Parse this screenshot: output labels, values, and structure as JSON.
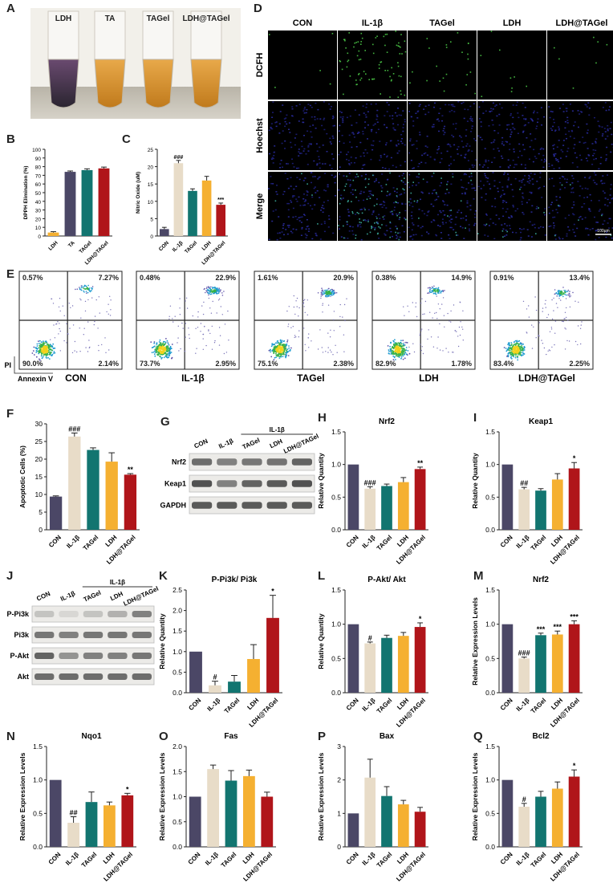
{
  "colors": {
    "CON": "#4b4766",
    "IL": "#e8dcc8",
    "TAGel": "#127570",
    "LDH": "#f5b031",
    "LDHTA": "#b0151a"
  },
  "panel_letters": [
    "A",
    "B",
    "C",
    "D",
    "E",
    "F",
    "G",
    "H",
    "I",
    "J",
    "K",
    "L",
    "M",
    "N",
    "O",
    "P",
    "Q"
  ],
  "panel_a": {
    "tubes": [
      "LDH",
      "TA",
      "TAGel",
      "LDH@TAGel"
    ]
  },
  "panel_d": {
    "cols": [
      "CON",
      "IL-1β",
      "TAGel",
      "LDH",
      "LDH@TAGel"
    ],
    "rows": [
      "DCFH",
      "Hoechst",
      "Merge"
    ],
    "scalebar": "100μm"
  },
  "panel_e": {
    "ylabel": "PI",
    "xlabel": "Annexin V",
    "plots": [
      {
        "name": "CON",
        "ul": "0.57%",
        "ur": "7.27%",
        "ll": "90.0%",
        "lr": "2.14%"
      },
      {
        "name": "IL-1β",
        "ul": "0.48%",
        "ur": "22.9%",
        "ll": "73.7%",
        "lr": "2.95%"
      },
      {
        "name": "TAGel",
        "ul": "1.61%",
        "ur": "20.9%",
        "ll": "75.1%",
        "lr": "2.38%"
      },
      {
        "name": "LDH",
        "ul": "0.38%",
        "ur": "14.9%",
        "ll": "82.9%",
        "lr": "1.78%"
      },
      {
        "name": "LDH@TAGel",
        "ul": "0.91%",
        "ur": "13.4%",
        "ll": "83.4%",
        "lr": "2.25%"
      }
    ]
  },
  "blot_g": {
    "group": "IL-1β",
    "lanes": [
      "CON",
      "IL-1β",
      "TAGel",
      "LDH",
      "LDH@TAGel"
    ],
    "rows": [
      "Nrf2",
      "Keap1",
      "GAPDH"
    ]
  },
  "blot_j": {
    "group": "IL-1β",
    "lanes": [
      "CON",
      "IL-1β",
      "TAGel",
      "LDH",
      "LDH@TAGel"
    ],
    "rows": [
      "P-Pi3k",
      "Pi3k",
      "P-Akt",
      "Akt"
    ]
  },
  "chart_data": [
    {
      "id": "B",
      "type": "bar",
      "title": "",
      "ylabel": "DPPH Elimination (%)",
      "ylim": [
        0,
        100
      ],
      "yticks": [
        0,
        10,
        20,
        30,
        40,
        50,
        60,
        70,
        80,
        90,
        100
      ],
      "categories": [
        "LDH",
        "TA",
        "TAGel",
        "LDH@TAGel"
      ],
      "colorkeys": [
        "LDH",
        "CON",
        "TAGel",
        "LDHTA"
      ],
      "values": [
        4,
        74,
        76,
        78
      ],
      "errors": [
        1,
        1,
        1.5,
        1.5
      ],
      "annotations": [
        "",
        "",
        "",
        ""
      ]
    },
    {
      "id": "C",
      "type": "bar",
      "title": "",
      "ylabel": "Nitric Oxide (uM)",
      "ylim": [
        0,
        25
      ],
      "yticks": [
        0,
        5,
        10,
        15,
        20,
        25
      ],
      "categories": [
        "CON",
        "IL-1β",
        "TAGel",
        "LDH",
        "LDH@TAGel"
      ],
      "colorkeys": [
        "CON",
        "IL",
        "TAGel",
        "LDH",
        "LDHTA"
      ],
      "values": [
        2,
        21,
        13,
        16,
        9
      ],
      "errors": [
        0.5,
        0.8,
        0.6,
        1.2,
        0.5
      ],
      "annotations": [
        "",
        "###",
        "",
        "",
        "***"
      ]
    },
    {
      "id": "F",
      "type": "bar",
      "title": "",
      "ylabel": "Apoptotic Cells (%)",
      "ylim": [
        0,
        30
      ],
      "yticks": [
        0,
        5,
        10,
        15,
        20,
        25,
        30
      ],
      "categories": [
        "CON",
        "IL-1β",
        "TAGel",
        "LDH",
        "LDH@TAGel"
      ],
      "colorkeys": [
        "CON",
        "IL",
        "TAGel",
        "LDH",
        "LDHTA"
      ],
      "values": [
        9.4,
        26.4,
        22.6,
        19.3,
        15.6
      ],
      "errors": [
        0.2,
        1.0,
        0.6,
        2.5,
        0.3
      ],
      "annotations": [
        "",
        "###",
        "",
        "",
        "**"
      ]
    },
    {
      "id": "H",
      "type": "bar",
      "title": "Nrf2",
      "ylabel": "Relative Quantity",
      "ylim": [
        0,
        1.5
      ],
      "yticks": [
        0,
        0.5,
        1.0,
        1.5
      ],
      "categories": [
        "CON",
        "IL-1β",
        "TAGel",
        "LDH",
        "LDH@TAGel"
      ],
      "colorkeys": [
        "CON",
        "IL",
        "TAGel",
        "LDH",
        "LDHTA"
      ],
      "values": [
        1.0,
        0.63,
        0.67,
        0.73,
        0.93
      ],
      "errors": [
        0,
        0.03,
        0.03,
        0.07,
        0.03
      ],
      "annotations": [
        "",
        "###",
        "",
        "",
        "**"
      ]
    },
    {
      "id": "I",
      "type": "bar",
      "title": "Keap1",
      "ylabel": "Relative Quantity",
      "ylim": [
        0,
        1.5
      ],
      "yticks": [
        0,
        0.5,
        1.0,
        1.5
      ],
      "categories": [
        "CON",
        "IL-1β",
        "TAGel",
        "LDH",
        "LDH@TAGel"
      ],
      "colorkeys": [
        "CON",
        "IL",
        "TAGel",
        "LDH",
        "LDHTA"
      ],
      "values": [
        1.0,
        0.62,
        0.6,
        0.77,
        0.94
      ],
      "errors": [
        0,
        0.03,
        0.03,
        0.09,
        0.09
      ],
      "annotations": [
        "",
        "##",
        "",
        "",
        "*"
      ]
    },
    {
      "id": "K",
      "type": "bar",
      "title": "P-Pi3k/ Pi3k",
      "ylabel": "Relative Quantity",
      "ylim": [
        0,
        2.5
      ],
      "yticks": [
        0,
        0.5,
        1.0,
        1.5,
        2.0,
        2.5
      ],
      "categories": [
        "CON",
        "IL-1β",
        "TAGel",
        "LDH",
        "LDH@TAGel"
      ],
      "colorkeys": [
        "CON",
        "IL",
        "TAGel",
        "LDH",
        "LDHTA"
      ],
      "values": [
        1.0,
        0.18,
        0.27,
        0.82,
        1.82
      ],
      "errors": [
        0,
        0.1,
        0.15,
        0.35,
        0.55
      ],
      "annotations": [
        "",
        "#",
        "",
        "",
        "*"
      ]
    },
    {
      "id": "L",
      "type": "bar",
      "title": "P-Akt/ Akt",
      "ylabel": "Relative Quantity",
      "ylim": [
        0,
        1.5
      ],
      "yticks": [
        0,
        0.5,
        1.0,
        1.5
      ],
      "categories": [
        "CON",
        "IL-1β",
        "TAGel",
        "LDH",
        "LDH@TAGel"
      ],
      "colorkeys": [
        "CON",
        "IL",
        "TAGel",
        "LDH",
        "LDHTA"
      ],
      "values": [
        1.0,
        0.72,
        0.8,
        0.83,
        0.96
      ],
      "errors": [
        0,
        0.02,
        0.04,
        0.05,
        0.06
      ],
      "annotations": [
        "",
        "#",
        "",
        "",
        "*"
      ]
    },
    {
      "id": "M",
      "type": "bar",
      "title": "Nrf2",
      "ylabel": "Relative Expression Levels",
      "ylim": [
        0,
        1.5
      ],
      "yticks": [
        0,
        0.5,
        1.0,
        1.5
      ],
      "categories": [
        "CON",
        "IL-1β",
        "TAGel",
        "LDH",
        "LDH@TAGel"
      ],
      "colorkeys": [
        "CON",
        "IL",
        "TAGel",
        "LDH",
        "LDHTA"
      ],
      "values": [
        1.0,
        0.5,
        0.84,
        0.85,
        1.0
      ],
      "errors": [
        0,
        0.02,
        0.03,
        0.05,
        0.05
      ],
      "annotations": [
        "",
        "###",
        "***",
        "***",
        "***"
      ]
    },
    {
      "id": "N",
      "type": "bar",
      "title": "Nqo1",
      "ylabel": "Relative Expression Levels",
      "ylim": [
        0,
        1.5
      ],
      "yticks": [
        0,
        0.5,
        1.0,
        1.5
      ],
      "categories": [
        "CON",
        "IL-1β",
        "TAGel",
        "LDH",
        "LDH@TAGel"
      ],
      "colorkeys": [
        "CON",
        "IL",
        "TAGel",
        "LDH",
        "LDHTA"
      ],
      "values": [
        1.0,
        0.36,
        0.67,
        0.62,
        0.77
      ],
      "errors": [
        0,
        0.09,
        0.15,
        0.05,
        0.03
      ],
      "annotations": [
        "",
        "##",
        "",
        "",
        "*"
      ]
    },
    {
      "id": "O",
      "type": "bar",
      "title": "Fas",
      "ylabel": "Relative Expression Levels",
      "ylim": [
        0,
        2.0
      ],
      "yticks": [
        0,
        0.5,
        1.0,
        1.5,
        2.0
      ],
      "categories": [
        "CON",
        "IL-1β",
        "TAGel",
        "LDH",
        "LDH@TAGel"
      ],
      "colorkeys": [
        "CON",
        "IL",
        "TAGel",
        "LDH",
        "LDHTA"
      ],
      "values": [
        1.0,
        1.55,
        1.32,
        1.41,
        1.0
      ],
      "errors": [
        0,
        0.08,
        0.2,
        0.12,
        0.09
      ],
      "annotations": [
        "",
        "",
        "",
        "",
        ""
      ]
    },
    {
      "id": "P",
      "type": "bar",
      "title": "Bax",
      "ylabel": "Relative Expression Levels",
      "ylim": [
        0,
        3
      ],
      "yticks": [
        0,
        1,
        2,
        3
      ],
      "categories": [
        "CON",
        "IL-1β",
        "TAGel",
        "LDH",
        "LDH@TAGel"
      ],
      "colorkeys": [
        "CON",
        "IL",
        "TAGel",
        "LDH",
        "LDHTA"
      ],
      "values": [
        1.0,
        2.07,
        1.52,
        1.27,
        1.05
      ],
      "errors": [
        0,
        0.55,
        0.28,
        0.12,
        0.13
      ],
      "annotations": [
        "",
        "",
        "",
        "",
        ""
      ]
    },
    {
      "id": "Q",
      "type": "bar",
      "title": "Bcl2",
      "ylabel": "Relative Expression Levels",
      "ylim": [
        0,
        1.5
      ],
      "yticks": [
        0,
        0.5,
        1.0,
        1.5
      ],
      "categories": [
        "CON",
        "IL-1β",
        "TAGel",
        "LDH",
        "LDH@TAGel"
      ],
      "colorkeys": [
        "CON",
        "IL",
        "TAGel",
        "LDH",
        "LDHTA"
      ],
      "values": [
        1.0,
        0.6,
        0.75,
        0.87,
        1.05
      ],
      "errors": [
        0,
        0.05,
        0.08,
        0.1,
        0.1
      ],
      "annotations": [
        "",
        "#",
        "",
        "",
        "*"
      ]
    }
  ]
}
